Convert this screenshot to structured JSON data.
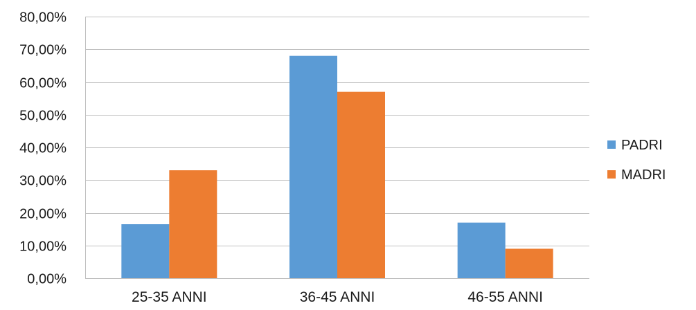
{
  "chart_data": {
    "type": "bar",
    "title": "",
    "xlabel": "",
    "ylabel": "",
    "categories": [
      "25-35 ANNI",
      "36-45 ANNI",
      "46-55 ANNI"
    ],
    "series": [
      {
        "name": "PADRI",
        "values": [
          16.5,
          68.0,
          17.0
        ],
        "color": "#5B9BD5"
      },
      {
        "name": "MADRI",
        "values": [
          33.0,
          57.0,
          9.0
        ],
        "color": "#ED7D31"
      }
    ],
    "ylim": [
      0,
      80
    ],
    "yticks": [
      0,
      10,
      20,
      30,
      40,
      50,
      60,
      70,
      80
    ],
    "ytick_labels": [
      "0,00%",
      "10,00%",
      "20,00%",
      "30,00%",
      "40,00%",
      "50,00%",
      "60,00%",
      "70,00%",
      "80,00%"
    ],
    "grid": true,
    "legend_position": "right"
  }
}
